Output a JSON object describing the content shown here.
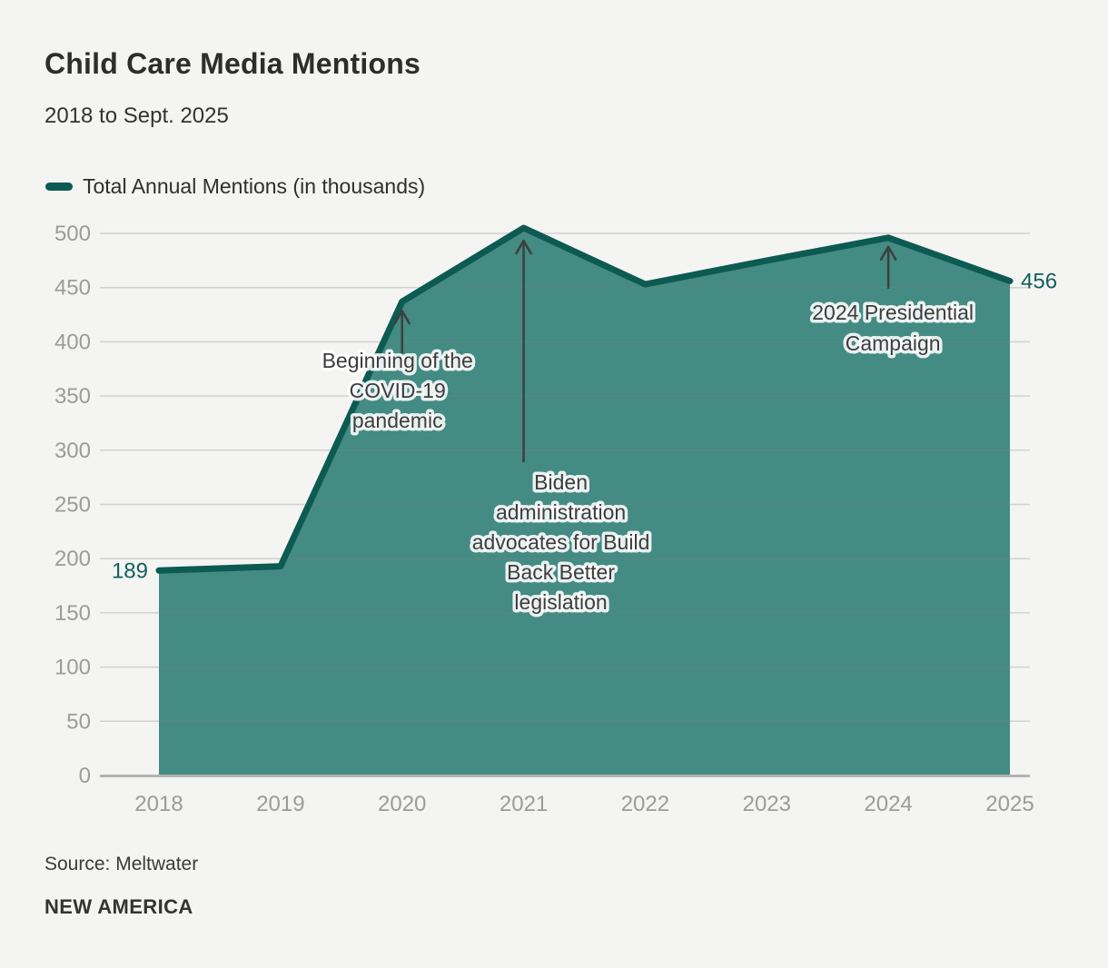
{
  "header": {
    "title": "Child Care Media Mentions",
    "subtitle": "2018 to Sept. 2025"
  },
  "legend": {
    "label": "Total Annual Mentions (in thousands)",
    "color": "#0c5a52"
  },
  "chart_data": {
    "type": "area",
    "x": [
      "2018",
      "2019",
      "2020",
      "2021",
      "2022",
      "2023",
      "2024",
      "2025"
    ],
    "series": [
      {
        "name": "Total Annual Mentions (in thousands)",
        "values": [
          189,
          193,
          437,
          505,
          453,
          475,
          496,
          456
        ]
      }
    ],
    "title": "Child Care Media Mentions",
    "subtitle": "2018 to Sept. 2025",
    "xlabel": "",
    "ylabel": "",
    "ylim": [
      0,
      500
    ],
    "ytick_step": 50,
    "grid": true,
    "legend_position": "top-left",
    "line_color": "#0c5a52",
    "fill_color": "#438b83",
    "point_labels": [
      {
        "year": "2018",
        "value": 189,
        "side": "left"
      },
      {
        "year": "2025",
        "value": 456,
        "side": "right"
      }
    ],
    "annotations": [
      {
        "lines": [
          "Beginning of the",
          "COVID-19",
          "pandemic"
        ],
        "year": "2020",
        "dx": -5,
        "tip_dy": 10,
        "tail_dy": 57,
        "first_dy": 65,
        "line_height": 33
      },
      {
        "lines": [
          "Biden",
          "administration",
          "advocates for Build",
          "Back Better",
          "legislation"
        ],
        "year": "2021",
        "dx": 41,
        "tip_dy": 14,
        "tail_dy": 258,
        "first_dy": 280,
        "line_height": 33
      },
      {
        "lines": [
          "2024 Presidential",
          "Campaign"
        ],
        "year": "2024",
        "dx": 5,
        "tip_dy": 10,
        "tail_dy": 56,
        "first_dy": 82,
        "line_height": 34
      }
    ]
  },
  "footer": {
    "source": "Source: Meltwater",
    "brand": "NEW AMERICA"
  },
  "colors": {
    "background": "#f4f4f3",
    "line": "#0c5a52",
    "fill": "#438b83",
    "value_label": "#11615a",
    "tick_label": "#9b9b9b",
    "axis_line": "#b3b3b3",
    "annotation_text": "#3d3d3d",
    "arrow": "#3e3e3e"
  }
}
